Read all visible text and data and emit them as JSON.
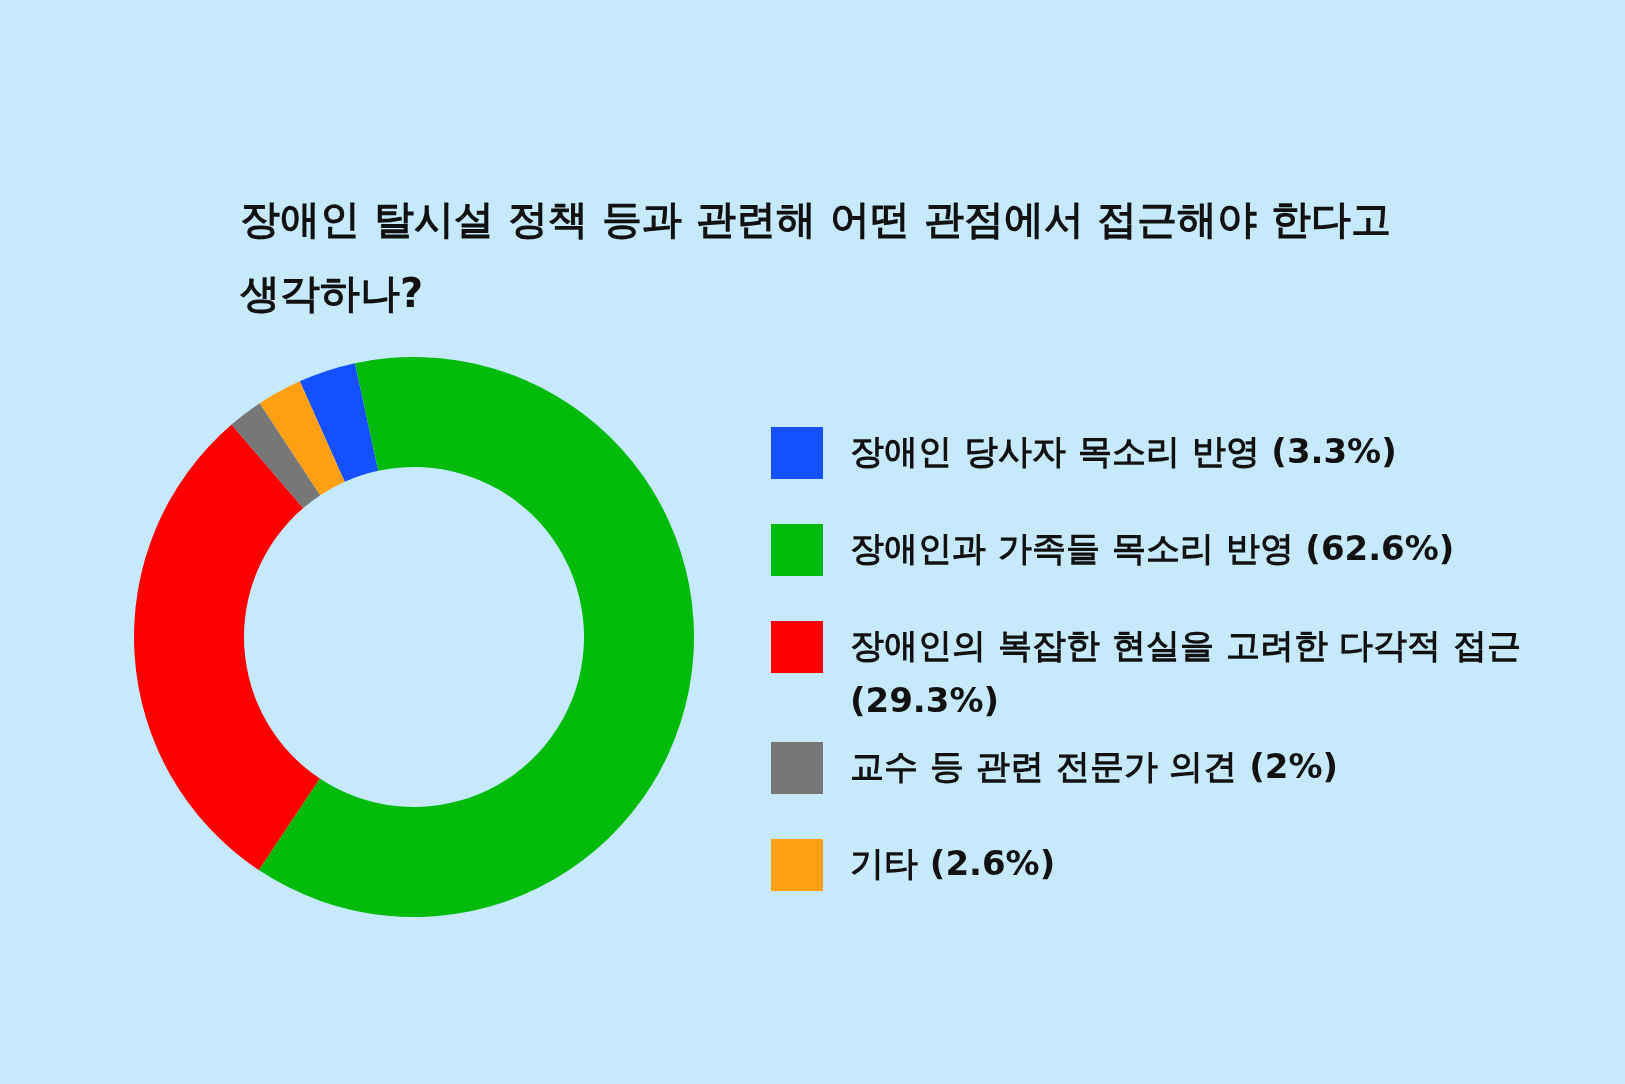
{
  "chart_data": {
    "type": "donut",
    "title": "장애인 탈시설 정책 등과 관련해 어떤 관점에서 접근해야 한다고 생각하나?",
    "categories": [
      "장애인 당사자 목소리 반영 (3.3%)",
      "장애인과 가족들 목소리 반영 (62.6%)",
      "장애인의 복잡한 현실을 고려한 다각적 접근 (29.3%)",
      "교수 등 관련 전문가 의견 (2%)",
      "기타 (2.6%)"
    ],
    "values": [
      3.3,
      62.6,
      29.3,
      2,
      2.6
    ],
    "colors": [
      "#1450ff",
      "#00bb0a",
      "#ff0000",
      "#777777",
      "#ffa012"
    ],
    "legend": "right"
  }
}
